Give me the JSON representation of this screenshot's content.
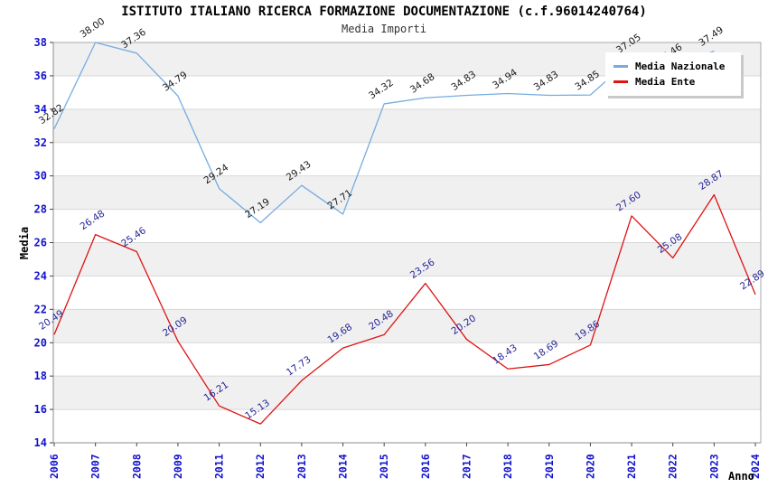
{
  "header": {
    "title": "ISTITUTO ITALIANO RICERCA FORMAZIONE DOCUMENTAZIONE (c.f.96014240764)",
    "subtitle": "Media Importi"
  },
  "chart_data": {
    "type": "line",
    "categories": [
      "2006",
      "2007",
      "2008",
      "2009",
      "2011",
      "2012",
      "2013",
      "2014",
      "2015",
      "2016",
      "2017",
      "2018",
      "2019",
      "2020",
      "2021",
      "2022",
      "2023",
      "2024"
    ],
    "series": [
      {
        "name": "Media Nazionale",
        "color": "#76ace0",
        "label_color": "#1a1a1a",
        "values": [
          32.82,
          38.0,
          37.36,
          34.79,
          29.24,
          27.19,
          29.43,
          27.71,
          34.32,
          34.68,
          34.83,
          34.94,
          34.83,
          34.85,
          37.05,
          36.46,
          37.49,
          null
        ]
      },
      {
        "name": "Media Ente",
        "color": "#e01212",
        "label_color": "#262699",
        "values": [
          20.49,
          26.48,
          25.46,
          20.09,
          16.21,
          15.13,
          17.73,
          19.68,
          20.48,
          23.56,
          20.2,
          18.43,
          18.69,
          19.86,
          27.6,
          25.08,
          28.87,
          22.89
        ]
      }
    ],
    "xlabel": "Anno",
    "ylabel": "Media",
    "ylim": [
      14,
      38
    ],
    "ytick_step": 2,
    "grid": true,
    "legend_position": "top-right",
    "band_color": "#f0f0f0",
    "grid_color": "#d8d8d8",
    "frame_color": "#a8a8a8",
    "tick_label_color": "#1212cc",
    "axis_title_color": "#000000"
  }
}
